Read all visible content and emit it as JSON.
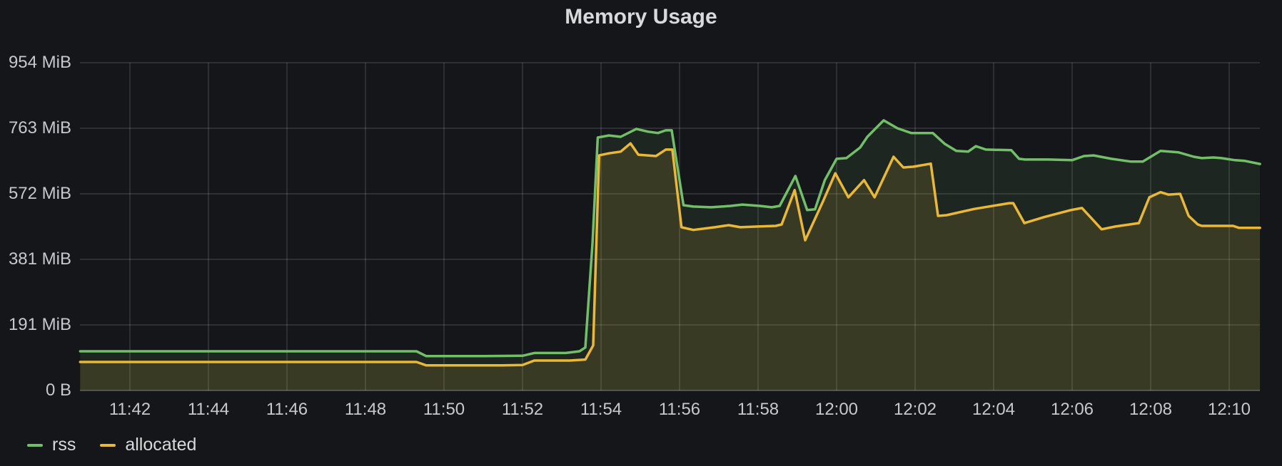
{
  "panel": {
    "title": "Memory Usage"
  },
  "colors": {
    "background": "#141619",
    "title_text": "#d8d9da",
    "axis_text": "#c7c8ce",
    "grid": "rgba(204,204,220,0.14)",
    "axis_line": "rgba(204,204,220,0.28)",
    "rss": "#73bf69",
    "allocated": "#eab839"
  },
  "legend": {
    "position": "bottom-left"
  },
  "chart_data": {
    "type": "area",
    "title": "Memory Usage",
    "xlabel": "",
    "ylabel": "",
    "grid": true,
    "legend_position": "bottom-left",
    "x_axis": {
      "ticks": [
        "11:42",
        "11:44",
        "11:46",
        "11:48",
        "11:50",
        "11:52",
        "11:54",
        "11:56",
        "11:58",
        "12:00",
        "12:02",
        "12:04",
        "12:06",
        "12:08",
        "12:10"
      ],
      "range_start": "11:40:44",
      "range_end": "12:10:47"
    },
    "y_axis": {
      "tick_labels": [
        "0 B",
        "191 MiB",
        "381 MiB",
        "572 MiB",
        "763 MiB",
        "954 MiB"
      ],
      "tick_values_mib": [
        0,
        190.73,
        381.47,
        572.2,
        762.94,
        953.67
      ],
      "max_mib": 953.67,
      "unit": "bytes (IEC)"
    },
    "series": [
      {
        "name": "rss",
        "color": "#73bf69",
        "fill_opacity": 0.1,
        "line_width": 3.5,
        "points": [
          [
            "11:40:44",
            114
          ],
          [
            "11:45:00",
            114
          ],
          [
            "11:49:18",
            114
          ],
          [
            "11:49:33",
            100
          ],
          [
            "11:51:00",
            100
          ],
          [
            "11:52:00",
            101
          ],
          [
            "11:52:18",
            109
          ],
          [
            "11:53:06",
            109
          ],
          [
            "11:53:27",
            114
          ],
          [
            "11:53:36",
            125
          ],
          [
            "11:53:47",
            430
          ],
          [
            "11:53:55",
            736
          ],
          [
            "11:54:12",
            742
          ],
          [
            "11:54:30",
            738
          ],
          [
            "11:54:54",
            761
          ],
          [
            "11:55:12",
            753
          ],
          [
            "11:55:27",
            749
          ],
          [
            "11:55:39",
            757
          ],
          [
            "11:55:48",
            757
          ],
          [
            "11:56:06",
            539
          ],
          [
            "11:56:21",
            535
          ],
          [
            "11:56:48",
            533
          ],
          [
            "11:57:18",
            537
          ],
          [
            "11:57:36",
            541
          ],
          [
            "11:58:03",
            537
          ],
          [
            "11:58:21",
            533
          ],
          [
            "11:58:33",
            537
          ],
          [
            "11:58:57",
            624
          ],
          [
            "11:59:15",
            525
          ],
          [
            "11:59:27",
            527
          ],
          [
            "11:59:42",
            612
          ],
          [
            "12:00:00",
            674
          ],
          [
            "12:00:15",
            676
          ],
          [
            "12:00:36",
            707
          ],
          [
            "12:00:47",
            738
          ],
          [
            "12:01:12",
            786
          ],
          [
            "12:01:33",
            763
          ],
          [
            "12:01:54",
            749
          ],
          [
            "12:02:27",
            749
          ],
          [
            "12:02:45",
            718
          ],
          [
            "12:03:03",
            697
          ],
          [
            "12:03:21",
            695
          ],
          [
            "12:03:33",
            711
          ],
          [
            "12:03:48",
            701
          ],
          [
            "12:04:27",
            699
          ],
          [
            "12:04:39",
            674
          ],
          [
            "12:04:48",
            672
          ],
          [
            "12:05:24",
            672
          ],
          [
            "12:06:00",
            670
          ],
          [
            "12:06:18",
            682
          ],
          [
            "12:06:33",
            684
          ],
          [
            "12:07:00",
            674
          ],
          [
            "12:07:30",
            666
          ],
          [
            "12:07:48",
            666
          ],
          [
            "12:08:15",
            697
          ],
          [
            "12:08:42",
            693
          ],
          [
            "12:09:06",
            680
          ],
          [
            "12:09:18",
            676
          ],
          [
            "12:09:36",
            678
          ],
          [
            "12:09:48",
            676
          ],
          [
            "12:10:09",
            670
          ],
          [
            "12:10:24",
            668
          ],
          [
            "12:10:47",
            659
          ]
        ]
      },
      {
        "name": "allocated",
        "color": "#eab839",
        "fill_opacity": 0.14,
        "line_width": 3.5,
        "points": [
          [
            "11:40:44",
            83
          ],
          [
            "11:45:00",
            83
          ],
          [
            "11:49:18",
            83
          ],
          [
            "11:49:33",
            73
          ],
          [
            "11:51:30",
            73
          ],
          [
            "11:52:00",
            74
          ],
          [
            "11:52:18",
            87
          ],
          [
            "11:53:12",
            87
          ],
          [
            "11:53:36",
            90
          ],
          [
            "11:53:48",
            131
          ],
          [
            "11:53:57",
            684
          ],
          [
            "11:54:12",
            690
          ],
          [
            "11:54:30",
            695
          ],
          [
            "11:54:45",
            719
          ],
          [
            "11:54:57",
            686
          ],
          [
            "11:55:24",
            682
          ],
          [
            "11:55:39",
            701
          ],
          [
            "11:55:49",
            701
          ],
          [
            "11:56:03",
            475
          ],
          [
            "11:56:21",
            467
          ],
          [
            "11:56:54",
            475
          ],
          [
            "11:57:15",
            481
          ],
          [
            "11:57:33",
            475
          ],
          [
            "11:58:00",
            477
          ],
          [
            "11:58:27",
            479
          ],
          [
            "11:58:36",
            483
          ],
          [
            "11:58:56",
            583
          ],
          [
            "11:59:12",
            437
          ],
          [
            "11:59:39",
            549
          ],
          [
            "11:59:58",
            632
          ],
          [
            "12:00:18",
            562
          ],
          [
            "12:00:42",
            612
          ],
          [
            "12:00:58",
            562
          ],
          [
            "12:01:27",
            680
          ],
          [
            "12:01:42",
            649
          ],
          [
            "12:01:57",
            651
          ],
          [
            "12:02:24",
            660
          ],
          [
            "12:02:35",
            508
          ],
          [
            "12:02:48",
            510
          ],
          [
            "12:03:30",
            528
          ],
          [
            "12:04:24",
            545
          ],
          [
            "12:04:30",
            545
          ],
          [
            "12:04:47",
            487
          ],
          [
            "12:05:18",
            505
          ],
          [
            "12:05:58",
            525
          ],
          [
            "12:06:15",
            531
          ],
          [
            "12:06:45",
            469
          ],
          [
            "12:07:06",
            477
          ],
          [
            "12:07:42",
            487
          ],
          [
            "12:07:58",
            562
          ],
          [
            "12:08:15",
            577
          ],
          [
            "12:08:27",
            570
          ],
          [
            "12:08:45",
            572
          ],
          [
            "12:08:58",
            508
          ],
          [
            "12:09:12",
            483
          ],
          [
            "12:09:18",
            479
          ],
          [
            "12:10:06",
            479
          ],
          [
            "12:10:15",
            473
          ],
          [
            "12:10:47",
            473
          ]
        ]
      }
    ]
  }
}
